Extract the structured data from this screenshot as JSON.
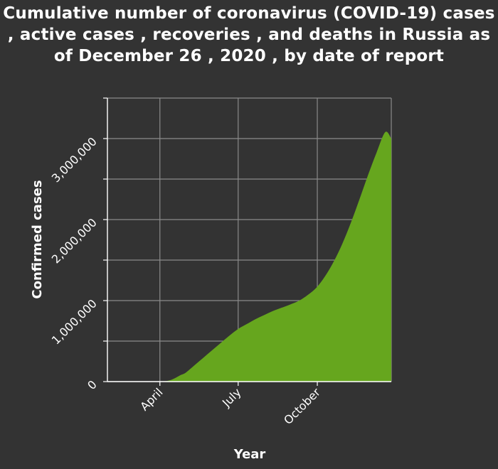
{
  "chart_data": {
    "type": "area",
    "title": "Cumulative number of coronavirus (COVID-19) cases , active cases , recoveries , and deaths in Russia as of December 26 , 2020 , by date of report",
    "xlabel": "Year",
    "ylabel": "Confirmed cases",
    "x_ticks": [
      {
        "label": "April",
        "date": "2020-04-01"
      },
      {
        "label": "July",
        "date": "2020-07-01"
      },
      {
        "label": "October",
        "date": "2020-10-01"
      }
    ],
    "y_ticks": [
      {
        "label": "0",
        "value": 0
      },
      {
        "label": "1,000,000",
        "value": 1000000
      },
      {
        "label": "2,000,000",
        "value": 2000000
      },
      {
        "label": "3,000,000",
        "value": 3000000
      }
    ],
    "xlim": [
      "2020-01-31",
      "2020-12-26"
    ],
    "ylim": [
      0,
      3500000
    ],
    "grid": true,
    "fill_color": "#66a61e",
    "background_color": "#333333",
    "series": [
      {
        "x": [
          "2020-04-01",
          "2020-04-07",
          "2020-04-13",
          "2020-04-19",
          "2020-04-25",
          "2020-05-01",
          "2020-05-11",
          "2020-05-21",
          "2020-05-31",
          "2020-06-10",
          "2020-06-20",
          "2020-07-01",
          "2020-07-11",
          "2020-07-21",
          "2020-07-31",
          "2020-08-10",
          "2020-08-20",
          "2020-08-30",
          "2020-09-10",
          "2020-09-20",
          "2020-09-30",
          "2020-10-10",
          "2020-10-20",
          "2020-10-30",
          "2020-11-09",
          "2020-11-19",
          "2020-11-29",
          "2020-12-09",
          "2020-12-19",
          "2020-12-26"
        ],
        "values": [
          0,
          5000,
          18000,
          45000,
          80000,
          110000,
          200000,
          290000,
          380000,
          470000,
          560000,
          650000,
          710000,
          770000,
          820000,
          870000,
          910000,
          950000,
          1000000,
          1070000,
          1160000,
          1300000,
          1480000,
          1700000,
          1960000,
          2250000,
          2550000,
          2830000,
          3080000,
          3000000
        ]
      }
    ]
  }
}
